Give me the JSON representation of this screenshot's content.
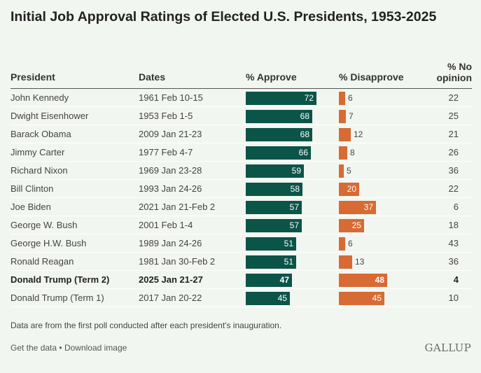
{
  "colors": {
    "approve": "#0b5448",
    "disapprove": "#d86a33",
    "background": "#f2f6f0"
  },
  "chart_data": {
    "type": "table",
    "title": "Initial Job Approval Ratings of Elected U.S. Presidents, 1953-2025",
    "columns": {
      "president": "President",
      "dates": "Dates",
      "approve": "% Approve",
      "disapprove": "% Disapprove",
      "no_opinion_line1": "% No",
      "no_opinion_line2": "opinion"
    },
    "scale_max": 100,
    "rows": [
      {
        "president": "John Kennedy",
        "dates": "1961 Feb 10-15",
        "approve": 72,
        "disapprove": 6,
        "no_opinion": 22,
        "highlight": false
      },
      {
        "president": "Dwight Eisenhower",
        "dates": "1953 Feb 1-5",
        "approve": 68,
        "disapprove": 7,
        "no_opinion": 25,
        "highlight": false
      },
      {
        "president": "Barack Obama",
        "dates": "2009 Jan 21-23",
        "approve": 68,
        "disapprove": 12,
        "no_opinion": 21,
        "highlight": false
      },
      {
        "president": "Jimmy Carter",
        "dates": "1977 Feb 4-7",
        "approve": 66,
        "disapprove": 8,
        "no_opinion": 26,
        "highlight": false
      },
      {
        "president": "Richard Nixon",
        "dates": "1969 Jan 23-28",
        "approve": 59,
        "disapprove": 5,
        "no_opinion": 36,
        "highlight": false
      },
      {
        "president": "Bill Clinton",
        "dates": "1993 Jan 24-26",
        "approve": 58,
        "disapprove": 20,
        "no_opinion": 22,
        "highlight": false
      },
      {
        "president": "Joe Biden",
        "dates": "2021 Jan 21-Feb 2",
        "approve": 57,
        "disapprove": 37,
        "no_opinion": 6,
        "highlight": false
      },
      {
        "president": "George W. Bush",
        "dates": "2001 Feb 1-4",
        "approve": 57,
        "disapprove": 25,
        "no_opinion": 18,
        "highlight": false
      },
      {
        "president": "George H.W. Bush",
        "dates": "1989 Jan 24-26",
        "approve": 51,
        "disapprove": 6,
        "no_opinion": 43,
        "highlight": false
      },
      {
        "president": "Ronald Reagan",
        "dates": "1981 Jan 30-Feb 2",
        "approve": 51,
        "disapprove": 13,
        "no_opinion": 36,
        "highlight": false
      },
      {
        "president": "Donald Trump (Term 2)",
        "dates": "2025 Jan 21-27",
        "approve": 47,
        "disapprove": 48,
        "no_opinion": 4,
        "highlight": true
      },
      {
        "president": "Donald Trump (Term 1)",
        "dates": "2017 Jan 20-22",
        "approve": 45,
        "disapprove": 45,
        "no_opinion": 10,
        "highlight": false
      }
    ],
    "note": "Data are from the first poll conducted after each president's inauguration."
  },
  "footer": {
    "get_data": "Get the data",
    "separator": "•",
    "download": "Download image",
    "logo": "GALLUP"
  }
}
